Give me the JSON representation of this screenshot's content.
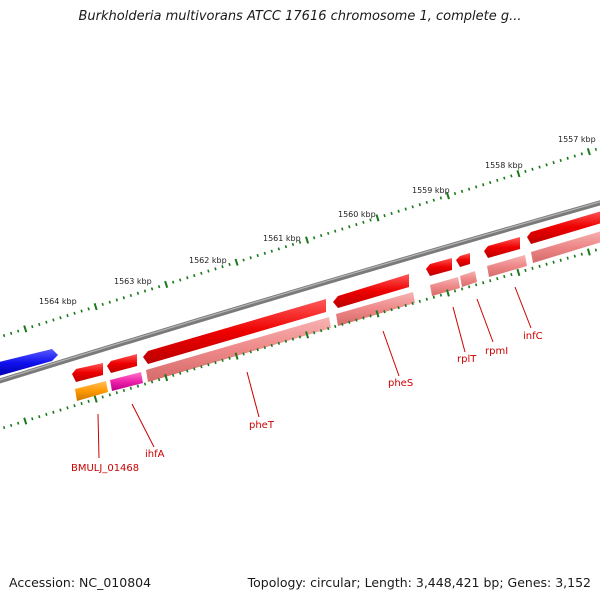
{
  "title": "Burkholderia multivorans ATCC 17616 chromosome 1, complete g...",
  "footer": {
    "accession": "Accession: NC_010804",
    "summary": "Topology: circular; Length: 3,448,421 bp; Genes: 3,152"
  },
  "ruler": {
    "labels": [
      "1557 kbp",
      "1558 kbp",
      "1559 kbp",
      "1560 kbp",
      "1561 kbp",
      "1562 kbp",
      "1563 kbp",
      "1564 kbp"
    ]
  },
  "genes": {
    "labels": [
      "BMULJ_01468",
      "ihfA",
      "pheT",
      "pheS",
      "rplT",
      "rpmI",
      "infC"
    ]
  },
  "colors": {
    "backbone": "#7a7a7a",
    "tick": "#1a7a1a",
    "cds_forward": "#ee0000",
    "cds_light": "#ee8888",
    "blue_feature": "#1010ee",
    "orange_feature": "#ff9900",
    "magenta_feature": "#ee22aa",
    "label_red": "#cc0000"
  }
}
